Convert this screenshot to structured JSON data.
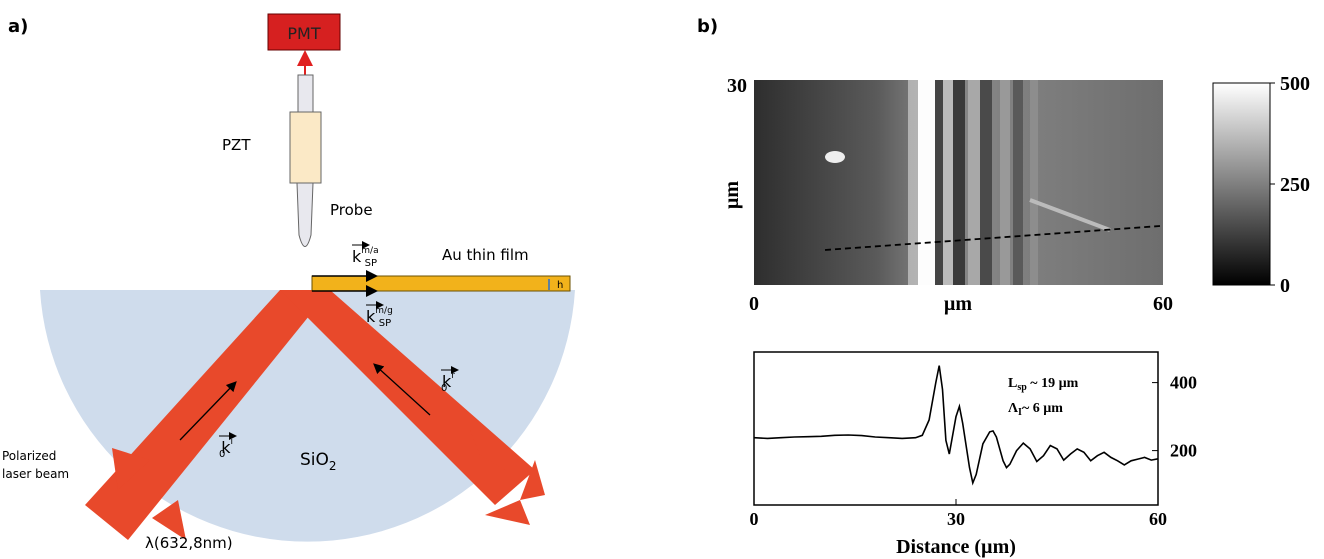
{
  "panel_a": {
    "label": "a)",
    "pmt": "PMT",
    "pzt": "PZT",
    "probe": "Probe",
    "film": "Au thin film",
    "h": "h",
    "substrate": {
      "base": "SiO",
      "sub": "2"
    },
    "beam": [
      "Polarized",
      "laser beam"
    ],
    "wavelength": "λ(632,8nm)",
    "k_ma": {
      "base": "k",
      "sub": "SP",
      "sup": "m/a"
    },
    "k_mg": {
      "base": "k",
      "sub": "SP",
      "sup": "m/g"
    },
    "k_r": {
      "base": "k",
      "sub": "0",
      "sup": "r"
    },
    "k_i": {
      "base": "k",
      "sub": "0",
      "sup": "i"
    }
  },
  "panel_b": {
    "label": "b)",
    "map": {
      "xlabel": "µm",
      "ylabel": "µm",
      "xlim": [
        0,
        60
      ],
      "xticks": [
        0,
        60
      ],
      "ylim": [
        0,
        30
      ],
      "yticks": [
        30
      ],
      "clim": [
        0,
        500
      ],
      "cticks": [
        0,
        250,
        500
      ]
    },
    "profile": {
      "type": "line",
      "xlabel": "Distance (µm)",
      "x": [
        0,
        2,
        4,
        6,
        8,
        10,
        12,
        14,
        16,
        18,
        20,
        22,
        24,
        25,
        26,
        27,
        27.5,
        28,
        28.5,
        29,
        30,
        30.5,
        31,
        32,
        32.5,
        33,
        34,
        35,
        35.5,
        36,
        37,
        37.5,
        38,
        39,
        40,
        41,
        42,
        43,
        44,
        45,
        46,
        47,
        48,
        49,
        50,
        51,
        52,
        53,
        54,
        55,
        56,
        57,
        58,
        59,
        60
      ],
      "values": [
        238,
        236,
        238,
        240,
        241,
        242,
        245,
        246,
        244,
        240,
        238,
        236,
        238,
        245,
        290,
        400,
        450,
        380,
        230,
        190,
        300,
        330,
        280,
        150,
        105,
        130,
        220,
        255,
        258,
        240,
        170,
        150,
        160,
        200,
        222,
        205,
        168,
        185,
        215,
        205,
        172,
        190,
        205,
        195,
        170,
        185,
        195,
        180,
        170,
        158,
        170,
        175,
        180,
        172,
        176
      ],
      "xlim": [
        0,
        60
      ],
      "xticks": [
        0,
        30,
        60
      ],
      "ylim": [
        40,
        490
      ],
      "yticks": [
        200,
        400
      ],
      "annotations": [
        {
          "base": "L",
          "sub": "sp",
          "rest": " ~ 19 µm"
        },
        {
          "base": "Λ",
          "sub": "I",
          "rest": "~ 6 µm"
        }
      ],
      "color": "#000000"
    }
  }
}
